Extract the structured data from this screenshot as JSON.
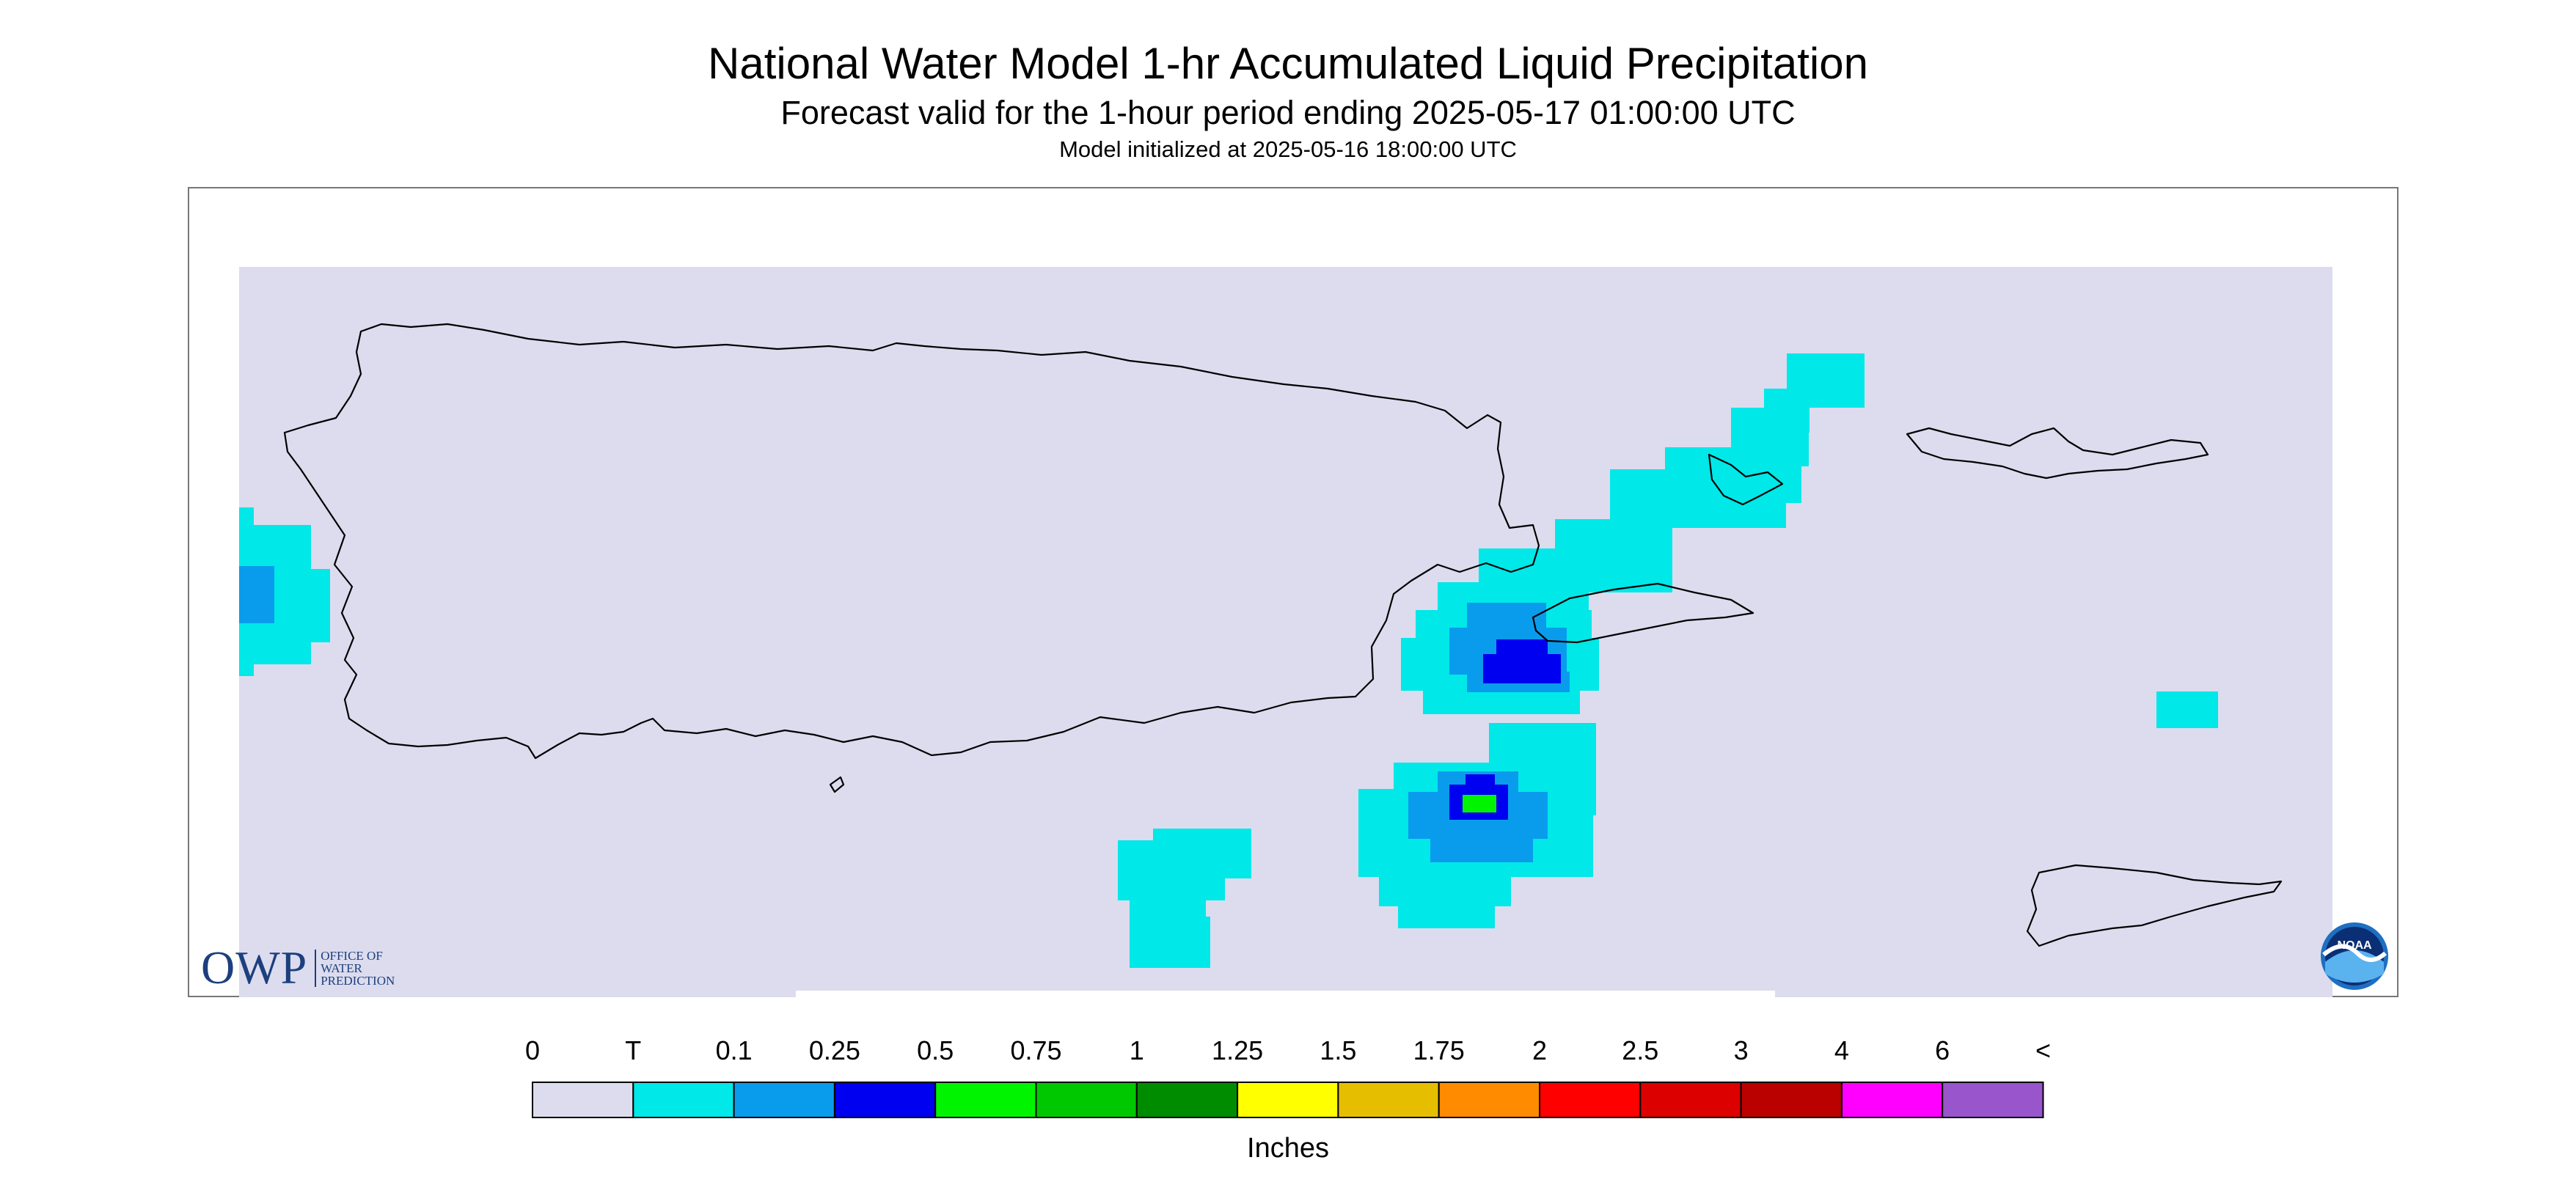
{
  "title": "National Water Model 1-hr Accumulated Liquid Precipitation",
  "subtitle": "Forecast valid for the 1-hour period ending 2025-05-17 01:00:00 UTC",
  "init": "Model initialized at 2025-05-16 18:00:00 UTC",
  "legend": {
    "unit_label": "Inches",
    "labels": [
      "0",
      "T",
      "0.1",
      "0.25",
      "0.5",
      "0.75",
      "1",
      "1.25",
      "1.5",
      "1.75",
      "2",
      "2.5",
      "3",
      "4",
      "6",
      "<"
    ],
    "colors": [
      "#dcdcee",
      "#00e8e8",
      "#0a9cec",
      "#0000f0",
      "#00f400",
      "#00c800",
      "#008c00",
      "#ffff00",
      "#e6be00",
      "#ff8c00",
      "#ff0000",
      "#dd0000",
      "#bb0000",
      "#ff00ff",
      "#9955cc"
    ]
  },
  "map": {
    "background_color": "#dcdcee",
    "coastline_color": "#000000",
    "regions": [
      "Puerto Rico",
      "Culebra",
      "Vieques",
      "U.S. Virgin Islands"
    ]
  },
  "logos": {
    "owp": {
      "mark": "OWP",
      "text_lines": [
        "Office of",
        "Water",
        "Prediction"
      ]
    },
    "noaa": {
      "text": "NOAA"
    }
  }
}
